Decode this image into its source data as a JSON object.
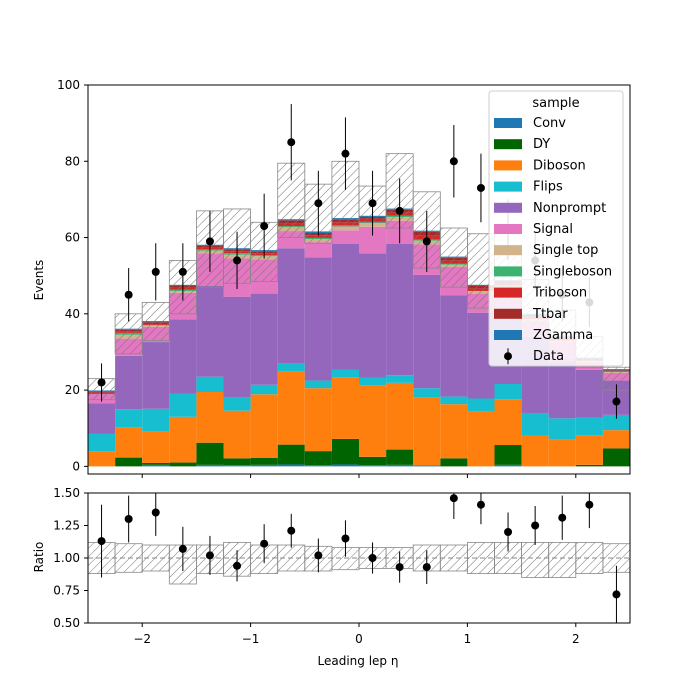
{
  "chart_data": [
    {
      "type": "stacked-step-histogram",
      "name": "main-panel",
      "ylabel": "Events",
      "xlabel": "",
      "xlim": [
        -2.5,
        2.5
      ],
      "ylim": [
        -2,
        100
      ],
      "yticks": [
        0,
        20,
        40,
        60,
        80,
        100
      ],
      "xticks": [
        -2,
        -1,
        0,
        1,
        2
      ],
      "bin_edges": [
        -2.5,
        -2.25,
        -2.0,
        -1.75,
        -1.5,
        -1.25,
        -1.0,
        -0.75,
        -0.5,
        -0.25,
        0.0,
        0.25,
        0.5,
        0.75,
        1.0,
        1.25,
        1.5,
        1.75,
        2.0,
        2.25,
        2.5
      ],
      "legend": {
        "title": "sample",
        "placement": "upper right"
      },
      "series": [
        {
          "name": "Conv",
          "color": "#1f77b4",
          "values": [
            0,
            0,
            0.4,
            0,
            0.4,
            0.3,
            0.4,
            0.5,
            0.3,
            0.5,
            0.3,
            0.4,
            0.3,
            0,
            0,
            0.4,
            0,
            0,
            0,
            0
          ]
        },
        {
          "name": "DY",
          "color": "#006400",
          "values": [
            0,
            2.3,
            0.5,
            1.0,
            5.8,
            1.8,
            1.8,
            5.2,
            3.7,
            6.7,
            2.2,
            4.0,
            0,
            2.1,
            0,
            5.2,
            0,
            0,
            0.4,
            4.7
          ]
        },
        {
          "name": "Diboson",
          "color": "#ff7f0e",
          "values": [
            4.0,
            8.0,
            8.2,
            12.0,
            13.3,
            12.5,
            16.7,
            19.2,
            16.5,
            16.2,
            18.8,
            17.5,
            17.7,
            14.2,
            14.3,
            12.0,
            8.0,
            7.0,
            7.8,
            4.8
          ]
        },
        {
          "name": "Flips",
          "color": "#17becf",
          "values": [
            4.5,
            4.7,
            6.0,
            6.0,
            4.0,
            3.4,
            2.5,
            2.0,
            2.0,
            2.0,
            2.0,
            2.0,
            2.5,
            2.0,
            3.5,
            4.0,
            6.0,
            5.6,
            4.6,
            4.0
          ]
        },
        {
          "name": "Nonprompt",
          "color": "#9467bd",
          "values": [
            8.0,
            14.0,
            17.5,
            19.5,
            23.8,
            26.5,
            23.9,
            30.3,
            32.3,
            33.0,
            32.5,
            34.5,
            29.7,
            26.5,
            22.5,
            19.0,
            20.0,
            15.0,
            12.5,
            9.0
          ]
        },
        {
          "name": "Signal",
          "color": "#e377c2",
          "values": [
            2.5,
            4.5,
            4.0,
            7.0,
            8.5,
            10.0,
            9.0,
            4.5,
            4.0,
            3.5,
            7.0,
            6.0,
            8.0,
            7.5,
            5.0,
            6.0,
            4.0,
            5.0,
            2.0,
            2.0
          ]
        },
        {
          "name": "Single top",
          "color": "#d2b48c",
          "values": [
            0,
            1.0,
            0.4,
            0.5,
            0.8,
            1.0,
            0.8,
            1.0,
            0.8,
            1.0,
            1.0,
            1.0,
            1.0,
            0.6,
            0.7,
            0.6,
            0.6,
            0.4,
            0.4,
            0.3
          ]
        },
        {
          "name": "Singleboson",
          "color": "#3cb371",
          "values": [
            0,
            0.5,
            0,
            0.3,
            0.3,
            0.4,
            0.3,
            0.3,
            0.3,
            0.3,
            0.3,
            0.3,
            0.3,
            0.2,
            0,
            0.3,
            0,
            0,
            0,
            0
          ]
        },
        {
          "name": "Triboson",
          "color": "#d62728",
          "values": [
            0.3,
            0.3,
            0.3,
            0.5,
            0.4,
            0.5,
            0.5,
            0.8,
            0.7,
            0.8,
            0.8,
            0.8,
            1.0,
            0.8,
            0.6,
            0.5,
            0.5,
            0.4,
            0.2,
            0.1
          ]
        },
        {
          "name": "Ttbar",
          "color": "#a52a2a",
          "values": [
            0.3,
            0.5,
            0.5,
            0.5,
            0.5,
            0.5,
            0.5,
            0.7,
            0.6,
            0.8,
            0.5,
            0.8,
            1.0,
            0.8,
            0.7,
            0.5,
            0.6,
            0.6,
            0.3,
            0.3
          ]
        },
        {
          "name": "ZGamma",
          "color": "#1f77b4",
          "values": [
            0.3,
            0.3,
            0.3,
            0.3,
            0.3,
            0.3,
            0.3,
            0.3,
            0.4,
            0.3,
            0.3,
            0.3,
            0.3,
            0.3,
            0.3,
            0.3,
            0.3,
            0.3,
            0.3,
            0.3
          ]
        }
      ],
      "uncertainty_band": {
        "up": [
          23.0,
          40.0,
          43.0,
          54.0,
          67.0,
          67.5,
          64.0,
          79.5,
          74.0,
          80.0,
          73.5,
          82.0,
          72.0,
          62.5,
          61.0,
          58.0,
          49.0,
          41.0,
          34.0,
          26.0
        ],
        "down": [
          17.5,
          29.5,
          33.0,
          40.0,
          47.0,
          48.0,
          48.5,
          60.0,
          58.5,
          63.0,
          64.0,
          62.5,
          52.0,
          47.0,
          41.5,
          41.0,
          35.0,
          28.0,
          26.0,
          20.0
        ]
      },
      "data": {
        "name": "Data",
        "x": [
          -2.375,
          -2.125,
          -1.875,
          -1.625,
          -1.375,
          -1.125,
          -0.875,
          -0.625,
          -0.375,
          -0.125,
          0.125,
          0.375,
          0.625,
          0.875,
          1.125,
          1.375,
          1.625,
          1.875,
          2.125,
          2.375
        ],
        "y": [
          22,
          45,
          51,
          51,
          59,
          54,
          63,
          85,
          69,
          82,
          69,
          67,
          59,
          80,
          73,
          62,
          54,
          45,
          43,
          17
        ],
        "err": [
          5.0,
          7.0,
          7.5,
          7.5,
          8.0,
          7.5,
          8.5,
          10.0,
          8.5,
          9.5,
          8.5,
          8.5,
          8.0,
          9.5,
          9.0,
          8.0,
          7.5,
          7.0,
          6.5,
          4.5
        ]
      }
    },
    {
      "type": "ratio",
      "name": "ratio-panel",
      "ylabel": "Ratio",
      "xlabel": "Leading lep η",
      "xlim": [
        -2.5,
        2.5
      ],
      "ylim": [
        0.5,
        1.5
      ],
      "yticks": [
        0.5,
        0.75,
        1.0,
        1.25,
        1.5
      ],
      "ytick_labels": [
        "0.50",
        "0.75",
        "1.00",
        "1.25",
        "1.50"
      ],
      "xticks": [
        -2,
        -1,
        0,
        1,
        2
      ],
      "xtick_labels": [
        "−2",
        "−1",
        "0",
        "1",
        "2"
      ],
      "reference_line": 1.0,
      "band_up": [
        1.12,
        1.11,
        1.1,
        1.1,
        1.1,
        1.12,
        1.1,
        1.1,
        1.09,
        1.08,
        1.08,
        1.08,
        1.1,
        1.1,
        1.12,
        1.12,
        1.12,
        1.12,
        1.12,
        1.11
      ],
      "band_down": [
        0.88,
        0.89,
        0.9,
        0.8,
        0.88,
        0.86,
        0.88,
        0.9,
        0.9,
        0.91,
        0.92,
        0.92,
        0.9,
        0.9,
        0.88,
        0.88,
        0.85,
        0.85,
        0.88,
        0.89
      ],
      "points": [
        1.13,
        1.3,
        1.35,
        1.07,
        1.02,
        0.94,
        1.11,
        1.21,
        1.02,
        1.15,
        1.0,
        0.93,
        0.93,
        1.46,
        1.41,
        1.2,
        1.25,
        1.31,
        1.41,
        0.72
      ],
      "errors": [
        0.28,
        0.18,
        0.18,
        0.17,
        0.15,
        0.12,
        0.15,
        0.13,
        0.13,
        0.14,
        0.12,
        0.12,
        0.13,
        0.16,
        0.15,
        0.15,
        0.15,
        0.17,
        0.18,
        0.22
      ]
    }
  ]
}
